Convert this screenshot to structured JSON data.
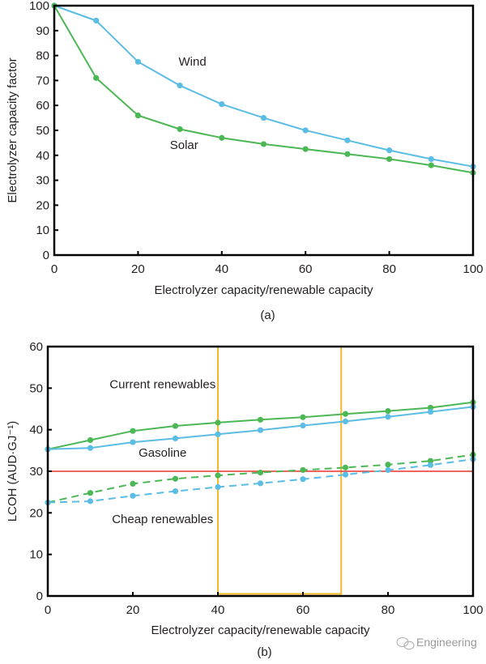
{
  "chart_data": [
    {
      "type": "line",
      "panel_label": "(a)",
      "title": "",
      "xlabel": "Electrolyzer capacity/renewable capacity",
      "ylabel": "Electrolyzer capacity factor",
      "xlim": [
        0,
        100
      ],
      "ylim": [
        0,
        100
      ],
      "x_ticks": [
        0,
        20,
        40,
        60,
        80,
        100
      ],
      "y_ticks": [
        0,
        10,
        20,
        30,
        40,
        50,
        60,
        70,
        80,
        90,
        100
      ],
      "grid": false,
      "legend": "none (inline annotations)",
      "x": [
        0,
        10,
        20,
        30,
        40,
        50,
        60,
        70,
        80,
        90,
        100
      ],
      "series": [
        {
          "name": "Wind",
          "color": "#5bbce4",
          "style": "solid",
          "values": [
            100,
            94,
            77.5,
            68,
            60.5,
            55,
            50,
            46,
            42,
            38.5,
            35.5
          ]
        },
        {
          "name": "Solar",
          "color": "#4cb755",
          "style": "solid",
          "values": [
            100,
            71,
            56,
            50.5,
            47,
            44.5,
            42.5,
            40.5,
            38.5,
            36,
            33
          ]
        }
      ],
      "annotations": [
        {
          "text": "Wind",
          "x": 33,
          "y": 76
        },
        {
          "text": "Solar",
          "x": 31,
          "y": 42.5
        }
      ]
    },
    {
      "type": "line",
      "panel_label": "(b)",
      "title": "",
      "xlabel": "Electrolyzer capacity/renewable capacity",
      "ylabel": "LCOH (AUD·GJ⁻¹)",
      "xlim": [
        0,
        100
      ],
      "ylim": [
        0,
        60
      ],
      "x_ticks": [
        0,
        20,
        40,
        60,
        80,
        100
      ],
      "y_ticks": [
        0,
        10,
        20,
        30,
        40,
        50,
        60
      ],
      "grid": false,
      "legend": "none (inline annotations)",
      "x": [
        0,
        10,
        20,
        30,
        40,
        50,
        60,
        70,
        80,
        90,
        100
      ],
      "series": [
        {
          "name": "Current renewables – solar",
          "color": "#4cb755",
          "style": "solid",
          "values": [
            35.3,
            37.5,
            39.7,
            40.9,
            41.7,
            42.4,
            43.0,
            43.8,
            44.5,
            45.3,
            46.6
          ]
        },
        {
          "name": "Current renewables – wind",
          "color": "#5bbce4",
          "style": "solid",
          "values": [
            35.3,
            35.6,
            37.0,
            37.9,
            38.9,
            39.9,
            41.0,
            42.0,
            43.1,
            44.3,
            45.5
          ]
        },
        {
          "name": "Cheap renewables – solar",
          "color": "#4cb755",
          "style": "dashed",
          "values": [
            22.5,
            24.8,
            27.0,
            28.2,
            29.0,
            29.7,
            30.3,
            30.9,
            31.6,
            32.5,
            34.0
          ]
        },
        {
          "name": "Cheap renewables – wind",
          "color": "#5bbce4",
          "style": "dashed",
          "values": [
            22.5,
            22.8,
            24.1,
            25.2,
            26.2,
            27.1,
            28.1,
            29.2,
            30.3,
            31.5,
            32.9
          ]
        }
      ],
      "reference_lines": [
        {
          "name": "Gasoline",
          "y": 30,
          "color": "#e8322d"
        }
      ],
      "highlight_region": {
        "x_range": [
          40,
          69
        ],
        "y_range": [
          0.5,
          60
        ],
        "color": "#f2b92d"
      },
      "annotations": [
        {
          "text": "Current renewables",
          "x": 27,
          "y": 50
        },
        {
          "text": "Gasoline",
          "x": 27,
          "y": 33.5
        },
        {
          "text": "Cheap renewables",
          "x": 27,
          "y": 17.5
        }
      ]
    }
  ],
  "watermark": {
    "text": "Engineering",
    "icon": "wechat-icon"
  }
}
